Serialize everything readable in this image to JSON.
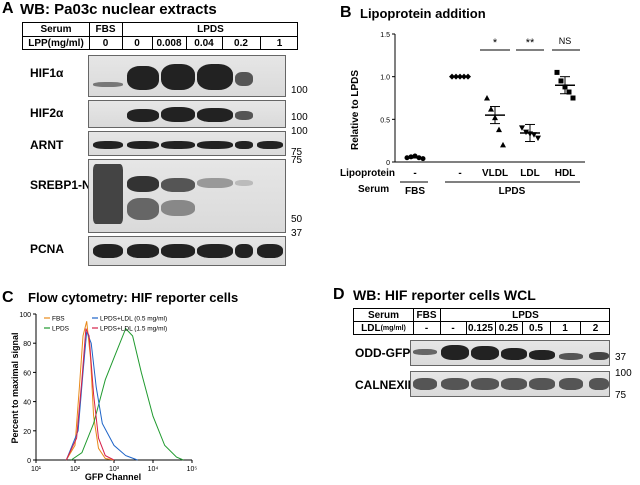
{
  "panelA": {
    "letter": "A",
    "title": "WB: Pa03c nuclear extracts",
    "row1_label": "Serum",
    "row1_fbs": "FBS",
    "row1_lpds": "LPDS",
    "row2_label": "LPP(mg/ml)",
    "lanes": [
      "0",
      "0",
      "0.008",
      "0.04",
      "0.2",
      "1"
    ],
    "blots": [
      {
        "label": "HIF1α",
        "mw": "100"
      },
      {
        "label": "HIF2α",
        "mw": "100"
      },
      {
        "label": "ARNT",
        "mw_top": "100",
        "mw_bottom": "75"
      },
      {
        "label": "SREBP1-N",
        "mw_top": "75",
        "mw_bottom": "50"
      },
      {
        "label": "PCNA",
        "mw": "37"
      }
    ]
  },
  "panelB": {
    "letter": "B",
    "title": "Lipoprotein addition",
    "ylabel": "Relative to LPDS",
    "row_lipoprotein_label": "Lipoprotein",
    "row_serum_label": "Serum",
    "lipoprotein_ticks": [
      "-",
      "-",
      "VLDL",
      "LDL",
      "HDL"
    ],
    "serum_ticks": [
      "FBS",
      "LPDS"
    ],
    "significance": [
      "*",
      "**",
      "NS"
    ]
  },
  "panelC": {
    "letter": "C",
    "title": "Flow cytometry: HIF reporter cells",
    "ylabel": "Percent to maximal signal",
    "xlabel": "GFP Channel",
    "legend": [
      {
        "name": "FBS",
        "color": "#e88a1a"
      },
      {
        "name": "LPDS",
        "color": "#1f9a2e"
      },
      {
        "name": "LPDS+LDL (0.5 mg/ml)",
        "color": "#1e64c8"
      },
      {
        "name": "LPDS+LDL (1.5 mg/ml)",
        "color": "#d6204a"
      }
    ],
    "yticks": [
      "100",
      "80",
      "60",
      "40",
      "20",
      "0"
    ],
    "xticks": [
      "10¹",
      "10²",
      "10³",
      "10⁴",
      "10⁵"
    ]
  },
  "panelD": {
    "letter": "D",
    "title": "WB: HIF reporter cells WCL",
    "row1_label": "Serum",
    "row1_fbs": "FBS",
    "row1_lpds": "LPDS",
    "row2_label": "LDL",
    "row2_unit": "(mg/ml)",
    "lanes": [
      "-",
      "-",
      "0.125",
      "0.25",
      "0.5",
      "1",
      "2"
    ],
    "blots": [
      {
        "label": "ODD-GFP",
        "mw": "37"
      },
      {
        "label": "CALNEXIN",
        "mw_top": "100",
        "mw_bottom": "75"
      }
    ]
  },
  "chart_data": [
    {
      "type": "scatter",
      "title": "Lipoprotein addition",
      "ylabel": "Relative to LPDS",
      "categories": [
        "FBS -",
        "LPDS -",
        "LPDS VLDL",
        "LPDS LDL",
        "LPDS HDL"
      ],
      "ylim": [
        0,
        1.5
      ],
      "yticks": [
        0,
        0.5,
        1.0,
        1.5
      ],
      "series": [
        {
          "values": [
            [
              0.05,
              0.06,
              0.07,
              0.05,
              0.04
            ],
            [
              1.0,
              1.0,
              1.0,
              1.0,
              1.0
            ],
            [
              0.75,
              0.62,
              0.52,
              0.38,
              0.2
            ],
            [
              0.4,
              0.35,
              0.33,
              0.32,
              0.28
            ],
            [
              1.05,
              0.95,
              0.88,
              0.82,
              0.75
            ]
          ]
        }
      ],
      "means": [
        0.05,
        1.0,
        0.55,
        0.34,
        0.9
      ],
      "annotations": [
        "*",
        "**",
        "NS"
      ]
    },
    {
      "type": "line",
      "title": "Flow cytometry: HIF reporter cells",
      "xlabel": "GFP Channel",
      "ylabel": "Percent to maximal signal",
      "xscale": "log",
      "xlim": [
        10,
        100000
      ],
      "ylim": [
        0,
        100
      ],
      "series": [
        {
          "name": "FBS",
          "points": [
            [
              60,
              0
            ],
            [
              100,
              10
            ],
            [
              130,
              50
            ],
            [
              160,
              85
            ],
            [
              200,
              95
            ],
            [
              250,
              70
            ],
            [
              300,
              30
            ],
            [
              400,
              8
            ],
            [
              600,
              1
            ],
            [
              1000,
              0
            ]
          ]
        },
        {
          "name": "LPDS",
          "points": [
            [
              80,
              0
            ],
            [
              150,
              5
            ],
            [
              300,
              25
            ],
            [
              600,
              55
            ],
            [
              1000,
              70
            ],
            [
              2000,
              90
            ],
            [
              3000,
              85
            ],
            [
              5000,
              60
            ],
            [
              10000,
              30
            ],
            [
              20000,
              10
            ],
            [
              40000,
              2
            ],
            [
              60000,
              0
            ]
          ]
        },
        {
          "name": "LPDS+LDL (0.5 mg/ml)",
          "points": [
            [
              60,
              0
            ],
            [
              120,
              20
            ],
            [
              160,
              60
            ],
            [
              200,
              88
            ],
            [
              260,
              80
            ],
            [
              350,
              50
            ],
            [
              500,
              25
            ],
            [
              1000,
              10
            ],
            [
              2000,
              3
            ],
            [
              4000,
              0
            ]
          ]
        },
        {
          "name": "LPDS+LDL (1.5 mg/ml)",
          "points": [
            [
              60,
              0
            ],
            [
              110,
              15
            ],
            [
              150,
              55
            ],
            [
              190,
              90
            ],
            [
              230,
              85
            ],
            [
              300,
              45
            ],
            [
              400,
              15
            ],
            [
              600,
              3
            ],
            [
              1000,
              0
            ]
          ]
        }
      ]
    }
  ]
}
